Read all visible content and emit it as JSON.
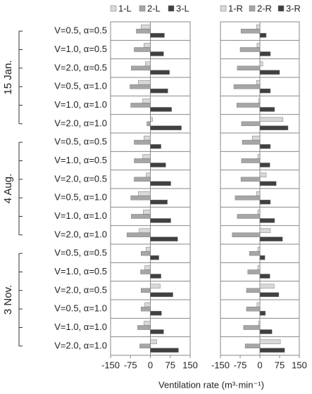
{
  "chart_data": [
    {
      "type": "bar",
      "categories": [
        "V=0.5, α=0.5",
        "V=1.0, α=0.5",
        "V=2.0, α=0.5",
        "V=0.5, α=1.0",
        "V=1.0, α=1.0",
        "V=2.0, α=1.0",
        "V=0.5, α=0.5",
        "V=1.0, α=0.5",
        "V=2.0, α=0.5",
        "V=0.5, α=1.0",
        "V=1.0, α=1.0",
        "V=2.0, α=1.0",
        "V=0.5, α=0.5",
        "V=1.0, α=0.5",
        "V=2.0, α=0.5",
        "V=0.5, α=1.0",
        "V=1.0, α=1.0",
        "V=2.0, α=1.0"
      ],
      "groups": [
        "15 Jan.",
        "4 Aug.",
        "3 Nov."
      ],
      "x_label": "Ventilation rate (m³·min⁻¹)",
      "series": [
        {
          "name": "1-L",
          "color": "#d9d9d9",
          "values": [
            -35,
            -24,
            -19,
            -45,
            -29,
            8,
            -24,
            -29,
            -16,
            -45,
            -27,
            -42,
            -16,
            -21,
            37,
            -21,
            -24,
            24
          ]
        },
        {
          "name": "2-L",
          "color": "#a6a6a6",
          "values": [
            -53,
            -61,
            -72,
            -77,
            -74,
            -13,
            -61,
            -61,
            -61,
            -74,
            -72,
            -88,
            -35,
            -37,
            -35,
            -35,
            -48,
            -40
          ]
        },
        {
          "name": "3-L",
          "color": "#404040",
          "values": [
            53,
            50,
            72,
            66,
            80,
            117,
            40,
            58,
            77,
            64,
            77,
            103,
            32,
            40,
            85,
            42,
            50,
            106
          ]
        }
      ],
      "xlim": [
        -150,
        150
      ],
      "xticks": [
        -150,
        -75,
        0,
        75,
        150
      ]
    },
    {
      "type": "bar",
      "series": [
        {
          "name": "1-R",
          "color": "#d9d9d9",
          "values": [
            -13,
            -11,
            11,
            -13,
            -5,
            88,
            -29,
            -8,
            24,
            -13,
            -8,
            40,
            -8,
            -8,
            54,
            -11,
            -5,
            78
          ]
        },
        {
          "name": "2-R",
          "color": "#a6a6a6",
          "values": [
            -72,
            -75,
            -86,
            -99,
            -88,
            -70,
            -67,
            -70,
            -72,
            -94,
            -86,
            -105,
            -40,
            -46,
            -51,
            -51,
            -62,
            -56
          ]
        },
        {
          "name": "3-R",
          "color": "#404040",
          "values": [
            24,
            40,
            75,
            40,
            56,
            107,
            40,
            38,
            62,
            40,
            56,
            86,
            19,
            38,
            72,
            21,
            46,
            94
          ]
        }
      ],
      "xlim": [
        -150,
        150
      ],
      "xticks": [
        -150,
        -75,
        0,
        75,
        150
      ]
    }
  ]
}
